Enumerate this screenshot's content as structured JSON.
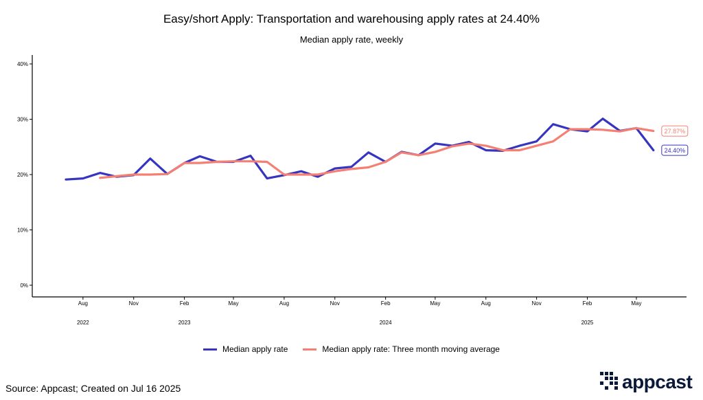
{
  "chart_data": {
    "type": "line",
    "title": "Easy/short Apply: Transportation and warehousing apply rates at 24.40%",
    "subtitle": "Median apply rate, weekly",
    "ylim": [
      0,
      40
    ],
    "y_ticks": [
      0,
      10,
      20,
      30,
      40
    ],
    "y_tick_labels": [
      "0%",
      "10%",
      "20%",
      "30%",
      "40%"
    ],
    "x_range": [
      "2022-05-01",
      "2025-07-31"
    ],
    "x_month_ticks": [
      {
        "date": "2022-08-01",
        "label": "Aug"
      },
      {
        "date": "2022-11-01",
        "label": "Nov"
      },
      {
        "date": "2023-02-01",
        "label": "Feb"
      },
      {
        "date": "2023-05-01",
        "label": "May"
      },
      {
        "date": "2023-08-01",
        "label": "Aug"
      },
      {
        "date": "2023-11-01",
        "label": "Nov"
      },
      {
        "date": "2024-02-01",
        "label": "Feb"
      },
      {
        "date": "2024-05-01",
        "label": "May"
      },
      {
        "date": "2024-08-01",
        "label": "Aug"
      },
      {
        "date": "2024-11-01",
        "label": "Nov"
      },
      {
        "date": "2025-02-01",
        "label": "Feb"
      },
      {
        "date": "2025-05-01",
        "label": "May"
      }
    ],
    "x_year_labels": [
      {
        "date": "2022-08-01",
        "label": "2022"
      },
      {
        "date": "2023-02-01",
        "label": "2023"
      },
      {
        "date": "2024-02-01",
        "label": "2024"
      },
      {
        "date": "2025-02-01",
        "label": "2025"
      }
    ],
    "series": [
      {
        "name": "Median apply rate",
        "color": "#3535c0",
        "end_label": "24.40%",
        "points": [
          [
            "2022-07-01",
            19.1
          ],
          [
            "2022-08-01",
            19.3
          ],
          [
            "2022-09-01",
            20.3
          ],
          [
            "2022-10-01",
            19.6
          ],
          [
            "2022-11-01",
            19.9
          ],
          [
            "2022-12-01",
            22.9
          ],
          [
            "2023-01-01",
            20.1
          ],
          [
            "2023-02-01",
            22.1
          ],
          [
            "2023-03-01",
            23.3
          ],
          [
            "2023-04-01",
            22.3
          ],
          [
            "2023-05-01",
            22.3
          ],
          [
            "2023-06-01",
            23.4
          ],
          [
            "2023-07-01",
            19.3
          ],
          [
            "2023-08-01",
            19.9
          ],
          [
            "2023-09-01",
            20.6
          ],
          [
            "2023-10-01",
            19.6
          ],
          [
            "2023-11-01",
            21.1
          ],
          [
            "2023-12-01",
            21.4
          ],
          [
            "2024-01-01",
            24.0
          ],
          [
            "2024-02-01",
            22.3
          ],
          [
            "2024-03-01",
            24.1
          ],
          [
            "2024-04-01",
            23.5
          ],
          [
            "2024-05-01",
            25.6
          ],
          [
            "2024-06-01",
            25.2
          ],
          [
            "2024-07-01",
            25.9
          ],
          [
            "2024-08-01",
            24.4
          ],
          [
            "2024-09-01",
            24.3
          ],
          [
            "2024-10-01",
            25.2
          ],
          [
            "2024-11-01",
            26.0
          ],
          [
            "2024-12-01",
            29.1
          ],
          [
            "2025-01-01",
            28.2
          ],
          [
            "2025-02-01",
            27.8
          ],
          [
            "2025-03-01",
            30.1
          ],
          [
            "2025-04-01",
            27.9
          ],
          [
            "2025-05-01",
            28.4
          ],
          [
            "2025-06-01",
            24.4
          ]
        ]
      },
      {
        "name": "Median apply rate: Three month moving average",
        "color": "#f47f72",
        "end_label": "27.87%",
        "points": [
          [
            "2022-09-01",
            19.4
          ],
          [
            "2022-10-01",
            19.7
          ],
          [
            "2022-11-01",
            20.0
          ],
          [
            "2022-12-01",
            20.0
          ],
          [
            "2023-01-01",
            20.1
          ],
          [
            "2023-02-01",
            22.1
          ],
          [
            "2023-03-01",
            22.1
          ],
          [
            "2023-04-01",
            22.3
          ],
          [
            "2023-05-01",
            22.4
          ],
          [
            "2023-06-01",
            22.4
          ],
          [
            "2023-07-01",
            22.3
          ],
          [
            "2023-08-01",
            20.0
          ],
          [
            "2023-09-01",
            20.0
          ],
          [
            "2023-10-01",
            20.0
          ],
          [
            "2023-11-01",
            20.6
          ],
          [
            "2023-12-01",
            21.0
          ],
          [
            "2024-01-01",
            21.3
          ],
          [
            "2024-02-01",
            22.3
          ],
          [
            "2024-03-01",
            24.0
          ],
          [
            "2024-04-01",
            23.5
          ],
          [
            "2024-05-01",
            24.1
          ],
          [
            "2024-06-01",
            25.1
          ],
          [
            "2024-07-01",
            25.6
          ],
          [
            "2024-08-01",
            25.2
          ],
          [
            "2024-09-01",
            24.4
          ],
          [
            "2024-10-01",
            24.4
          ],
          [
            "2024-11-01",
            25.2
          ],
          [
            "2024-12-01",
            26.0
          ],
          [
            "2025-01-01",
            28.2
          ],
          [
            "2025-02-01",
            28.2
          ],
          [
            "2025-03-01",
            28.1
          ],
          [
            "2025-04-01",
            27.8
          ],
          [
            "2025-05-01",
            28.4
          ],
          [
            "2025-06-01",
            27.87
          ]
        ]
      }
    ],
    "legend_position": "bottom",
    "grid": false
  },
  "footer": {
    "source": "Source: Appcast; Created on Jul 16 2025",
    "logo_text": "appcast",
    "logo_color": "#0b1a3a"
  }
}
